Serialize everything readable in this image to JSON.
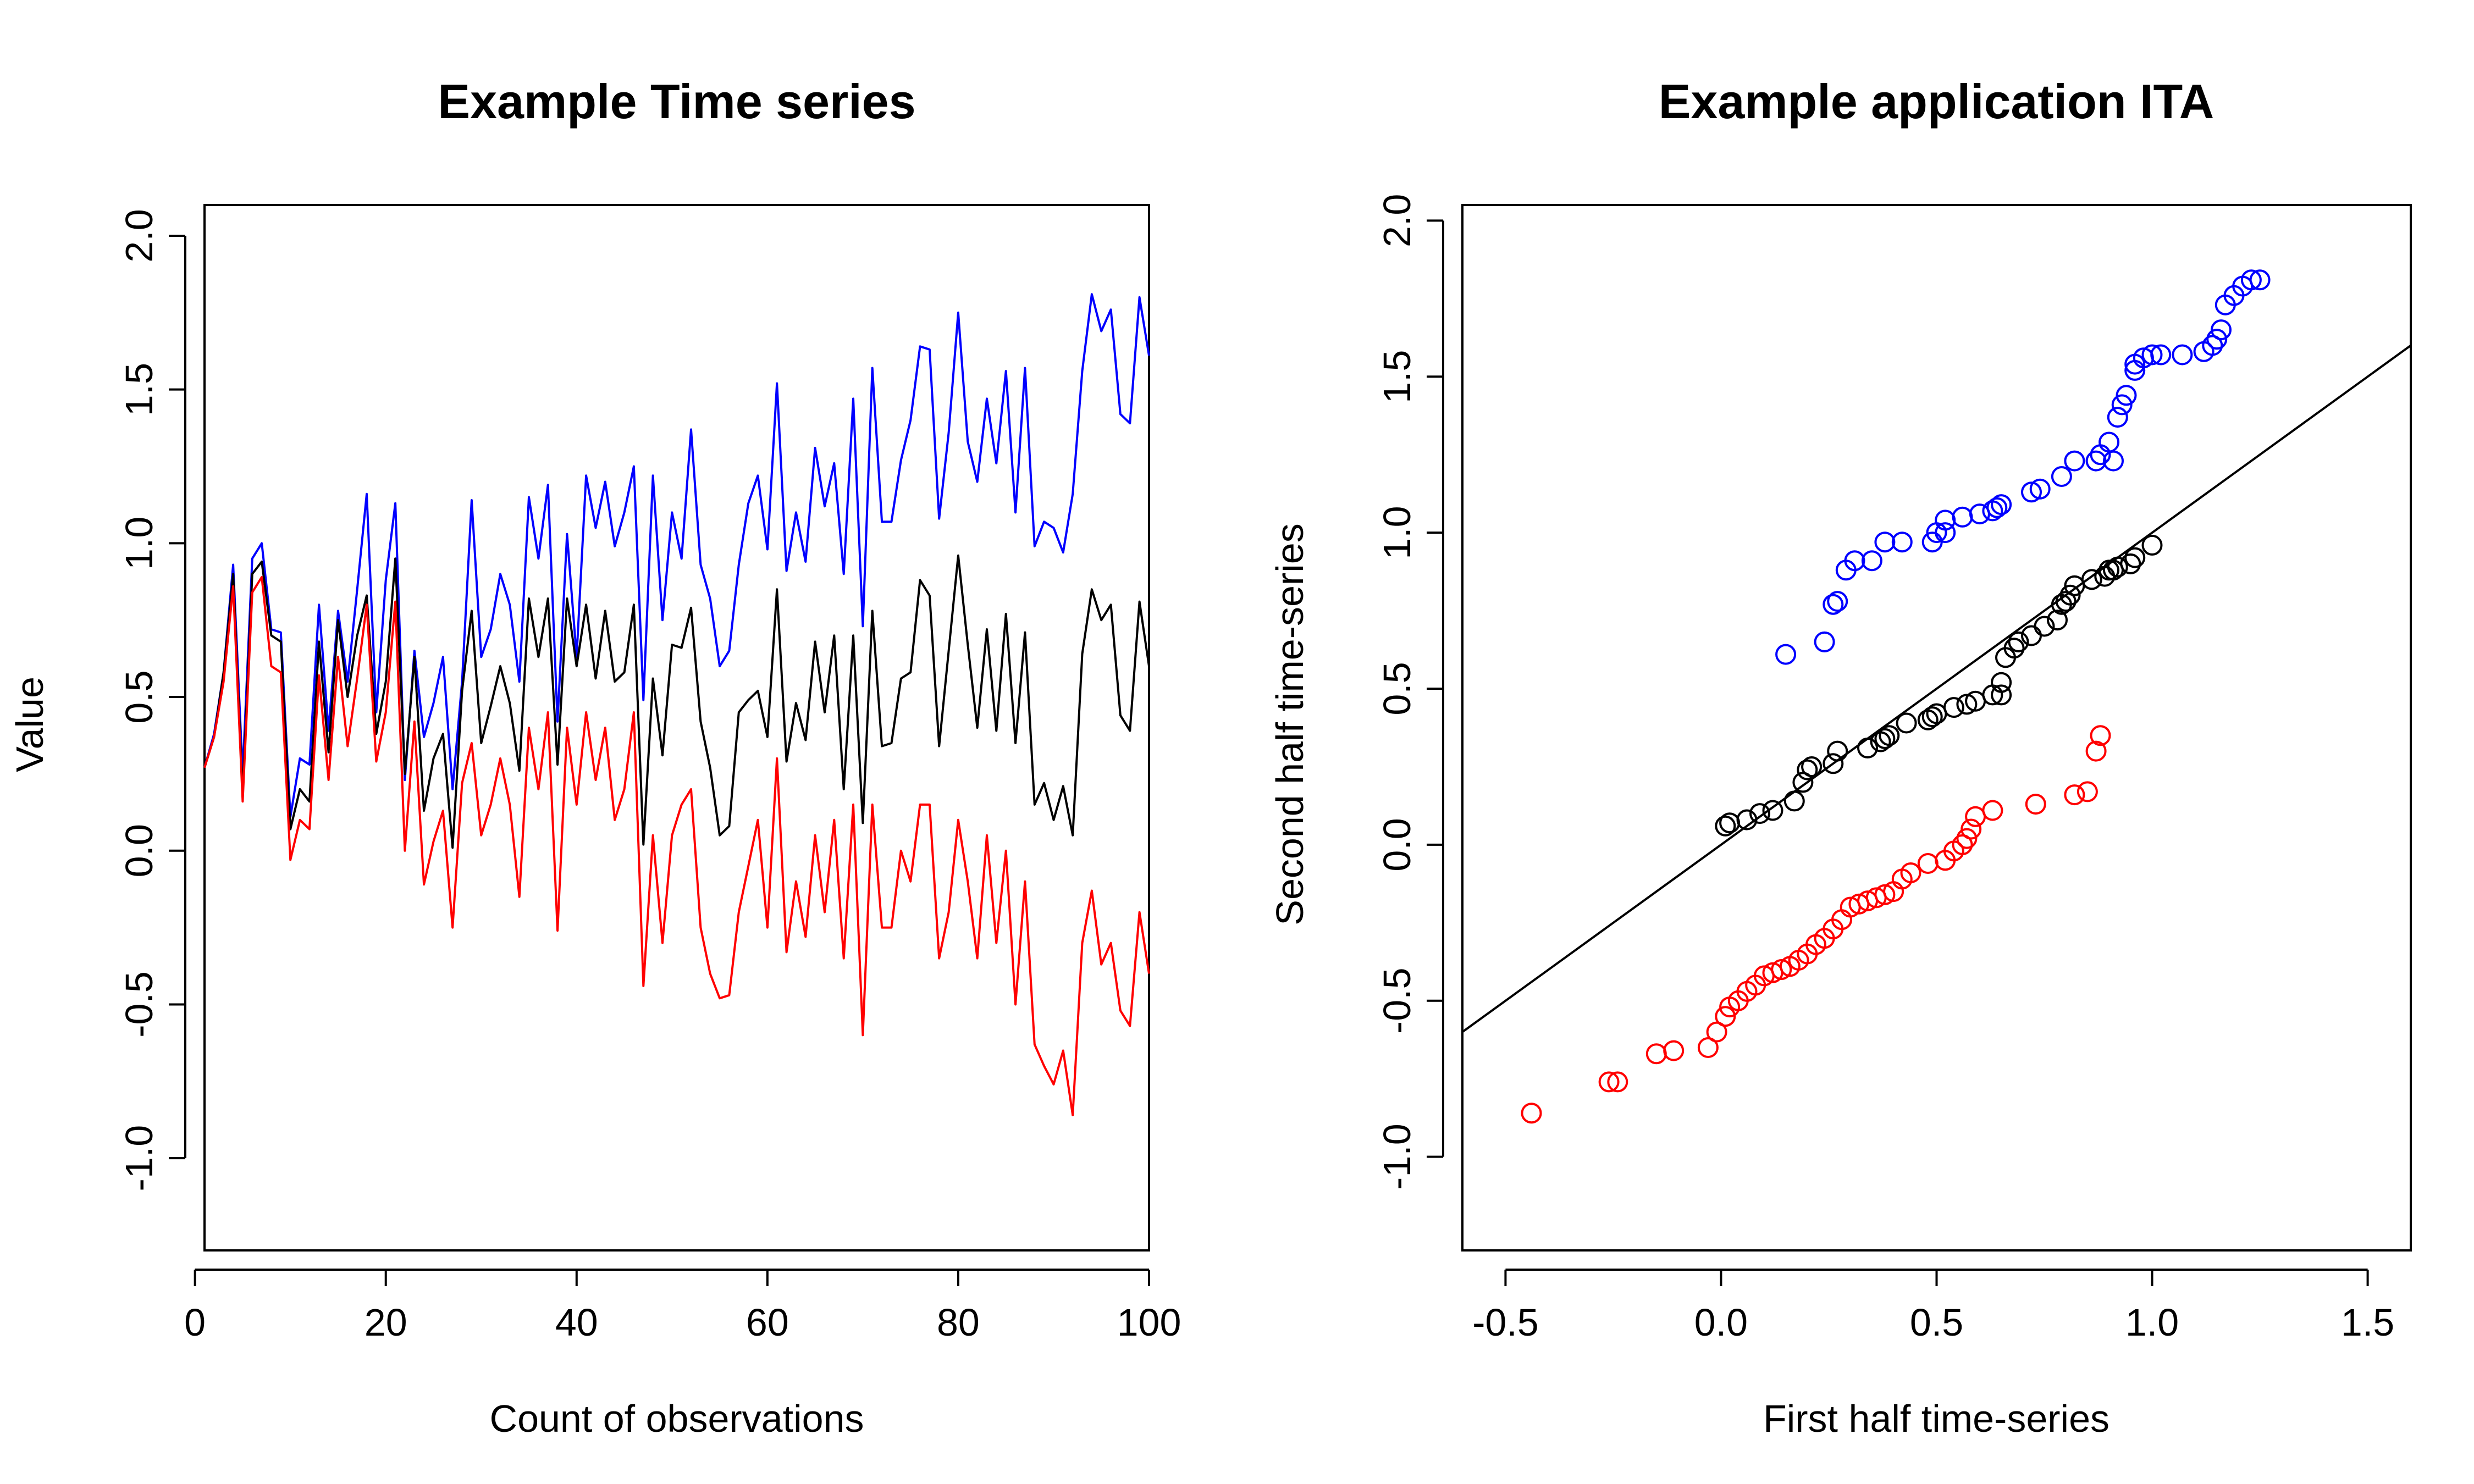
{
  "chart_data": [
    {
      "type": "line",
      "title": "Example Time series",
      "xlabel": "Count of observations",
      "ylabel": "Value",
      "xlim": [
        1,
        100
      ],
      "ylim": [
        -1.3,
        2.1
      ],
      "x_ticks": [
        "0",
        "20",
        "40",
        "60",
        "80",
        "100"
      ],
      "y_ticks": [
        "-1.0",
        "-0.5",
        "0.0",
        "0.5",
        "1.0",
        "1.5",
        "2.0"
      ],
      "grid": false,
      "x": [
        1,
        2,
        3,
        4,
        5,
        6,
        7,
        8,
        9,
        10,
        11,
        12,
        13,
        14,
        15,
        16,
        17,
        18,
        19,
        20,
        21,
        22,
        23,
        24,
        25,
        26,
        27,
        28,
        29,
        30,
        31,
        32,
        33,
        34,
        35,
        36,
        37,
        38,
        39,
        40,
        41,
        42,
        43,
        44,
        45,
        46,
        47,
        48,
        49,
        50,
        51,
        52,
        53,
        54,
        55,
        56,
        57,
        58,
        59,
        60,
        61,
        62,
        63,
        64,
        65,
        66,
        67,
        68,
        69,
        70,
        71,
        72,
        73,
        74,
        75,
        76,
        77,
        78,
        79,
        80,
        81,
        82,
        83,
        84,
        85,
        86,
        87,
        88,
        89,
        90,
        91,
        92,
        93,
        94,
        95,
        96,
        97,
        98,
        99,
        100
      ],
      "series": [
        {
          "color": "#0000ff",
          "values": [
            0.27,
            0.38,
            0.58,
            0.93,
            0.25,
            0.95,
            1.0,
            0.72,
            0.71,
            0.11,
            0.3,
            0.28,
            0.8,
            0.39,
            0.78,
            0.55,
            0.85,
            1.16,
            0.45,
            0.88,
            1.13,
            0.23,
            0.65,
            0.37,
            0.48,
            0.63,
            0.2,
            0.55,
            1.14,
            0.63,
            0.72,
            0.9,
            0.8,
            0.55,
            1.15,
            0.95,
            1.19,
            0.42,
            1.03,
            0.63,
            1.22,
            1.05,
            1.2,
            0.99,
            1.1,
            1.25,
            0.49,
            1.22,
            0.75,
            1.1,
            0.95,
            1.37,
            0.93,
            0.82,
            0.6,
            0.65,
            0.93,
            1.13,
            1.22,
            0.98,
            1.52,
            0.91,
            1.1,
            0.94,
            1.31,
            1.12,
            1.26,
            0.9,
            1.47,
            0.73,
            1.57,
            1.07,
            1.07,
            1.27,
            1.4,
            1.64,
            1.63,
            1.08,
            1.36,
            1.75,
            1.33,
            1.2,
            1.47,
            1.26,
            1.56,
            1.1,
            1.57,
            0.99,
            1.07,
            1.05,
            0.97,
            1.16,
            1.56,
            1.81,
            1.69,
            1.76,
            1.42,
            1.39,
            1.8,
            1.61
          ]
        },
        {
          "color": "#000000",
          "values": [
            0.27,
            0.37,
            0.58,
            0.9,
            0.18,
            0.9,
            0.94,
            0.7,
            0.68,
            0.07,
            0.2,
            0.16,
            0.68,
            0.32,
            0.75,
            0.5,
            0.7,
            0.83,
            0.38,
            0.55,
            0.95,
            0.25,
            0.63,
            0.13,
            0.3,
            0.38,
            0.01,
            0.52,
            0.78,
            0.35,
            0.47,
            0.6,
            0.48,
            0.26,
            0.82,
            0.63,
            0.82,
            0.28,
            0.82,
            0.6,
            0.8,
            0.56,
            0.78,
            0.55,
            0.58,
            0.8,
            0.02,
            0.56,
            0.31,
            0.67,
            0.66,
            0.79,
            0.42,
            0.27,
            0.05,
            0.08,
            0.45,
            0.49,
            0.52,
            0.37,
            0.85,
            0.29,
            0.48,
            0.36,
            0.68,
            0.45,
            0.7,
            0.2,
            0.7,
            0.09,
            0.78,
            0.34,
            0.35,
            0.56,
            0.58,
            0.88,
            0.83,
            0.34,
            0.65,
            0.96,
            0.67,
            0.4,
            0.72,
            0.39,
            0.77,
            0.35,
            0.71,
            0.15,
            0.22,
            0.1,
            0.21,
            0.05,
            0.64,
            0.85,
            0.75,
            0.8,
            0.44,
            0.39,
            0.81,
            0.6
          ]
        },
        {
          "color": "#ff0000",
          "values": [
            0.27,
            0.37,
            0.55,
            0.86,
            0.16,
            0.84,
            0.89,
            0.6,
            0.58,
            -0.03,
            0.1,
            0.07,
            0.57,
            0.23,
            0.63,
            0.34,
            0.56,
            0.8,
            0.29,
            0.45,
            0.81,
            0.0,
            0.42,
            -0.11,
            0.03,
            0.13,
            -0.25,
            0.22,
            0.35,
            0.05,
            0.15,
            0.3,
            0.15,
            -0.15,
            0.4,
            0.2,
            0.45,
            -0.26,
            0.4,
            0.15,
            0.45,
            0.23,
            0.4,
            0.1,
            0.2,
            0.45,
            -0.44,
            0.05,
            -0.3,
            0.05,
            0.15,
            0.2,
            -0.25,
            -0.4,
            -0.48,
            -0.47,
            -0.2,
            -0.05,
            0.1,
            -0.25,
            0.3,
            -0.33,
            -0.1,
            -0.28,
            0.05,
            -0.2,
            0.1,
            -0.35,
            0.15,
            -0.6,
            0.15,
            -0.25,
            -0.25,
            0.0,
            -0.1,
            0.15,
            0.15,
            -0.35,
            -0.2,
            0.1,
            -0.1,
            -0.35,
            0.05,
            -0.3,
            0.0,
            -0.5,
            -0.1,
            -0.63,
            -0.7,
            -0.76,
            -0.65,
            -0.86,
            -0.3,
            -0.13,
            -0.37,
            -0.3,
            -0.52,
            -0.57,
            -0.2,
            -0.4
          ]
        }
      ]
    },
    {
      "type": "scatter",
      "title": "Example application ITA",
      "xlabel": "First half time-series",
      "ylabel": "Second half time-series",
      "xlim": [
        -0.6,
        1.6
      ],
      "ylim": [
        -1.3,
        2.05
      ],
      "x_ticks": [
        "-0.5",
        "0.0",
        "0.5",
        "1.0",
        "1.5"
      ],
      "y_ticks": [
        "-1.0",
        "-0.5",
        "0.0",
        "0.5",
        "1.0",
        "1.5",
        "2.0"
      ],
      "grid": false,
      "reference_line": {
        "slope": 1,
        "intercept": 0
      },
      "series": [
        {
          "color": "#0000ff",
          "x": [
            0.15,
            0.24,
            0.26,
            0.27,
            0.29,
            0.31,
            0.35,
            0.38,
            0.42,
            0.49,
            0.5,
            0.52,
            0.52,
            0.56,
            0.6,
            0.63,
            0.64,
            0.65,
            0.72,
            0.74,
            0.79,
            0.82,
            0.87,
            0.88,
            0.9,
            0.91,
            0.92,
            0.93,
            0.94,
            0.96,
            0.96,
            0.98,
            1.0,
            1.02,
            1.07,
            1.12,
            1.14,
            1.15,
            1.16,
            1.17,
            1.19,
            1.21,
            1.23,
            1.25
          ],
          "y": [
            0.61,
            0.65,
            0.77,
            0.78,
            0.88,
            0.91,
            0.91,
            0.97,
            0.97,
            0.97,
            1.0,
            1.0,
            1.04,
            1.05,
            1.06,
            1.07,
            1.08,
            1.09,
            1.13,
            1.14,
            1.18,
            1.23,
            1.23,
            1.25,
            1.29,
            1.23,
            1.37,
            1.41,
            1.44,
            1.52,
            1.54,
            1.56,
            1.57,
            1.57,
            1.57,
            1.58,
            1.6,
            1.62,
            1.65,
            1.73,
            1.76,
            1.79,
            1.81,
            1.81
          ]
        },
        {
          "color": "#000000",
          "x": [
            0.01,
            0.02,
            0.06,
            0.09,
            0.12,
            0.17,
            0.19,
            0.2,
            0.21,
            0.26,
            0.27,
            0.34,
            0.37,
            0.38,
            0.39,
            0.43,
            0.48,
            0.49,
            0.5,
            0.54,
            0.57,
            0.59,
            0.63,
            0.65,
            0.65,
            0.66,
            0.68,
            0.69,
            0.72,
            0.75,
            0.78,
            0.79,
            0.8,
            0.81,
            0.82,
            0.86,
            0.89,
            0.9,
            0.91,
            0.92,
            0.95,
            0.96,
            1.0
          ],
          "y": [
            0.06,
            0.07,
            0.08,
            0.1,
            0.11,
            0.14,
            0.2,
            0.24,
            0.25,
            0.26,
            0.3,
            0.31,
            0.33,
            0.34,
            0.35,
            0.39,
            0.4,
            0.41,
            0.42,
            0.44,
            0.45,
            0.46,
            0.48,
            0.48,
            0.52,
            0.6,
            0.63,
            0.65,
            0.67,
            0.7,
            0.72,
            0.77,
            0.78,
            0.8,
            0.83,
            0.85,
            0.86,
            0.88,
            0.88,
            0.89,
            0.9,
            0.92,
            0.96
          ]
        },
        {
          "color": "#ff0000",
          "x": [
            -0.44,
            -0.26,
            -0.24,
            -0.15,
            -0.11,
            -0.03,
            -0.01,
            0.01,
            0.02,
            0.04,
            0.06,
            0.08,
            0.1,
            0.12,
            0.14,
            0.16,
            0.18,
            0.2,
            0.22,
            0.24,
            0.26,
            0.28,
            0.3,
            0.32,
            0.34,
            0.36,
            0.38,
            0.4,
            0.42,
            0.44,
            0.48,
            0.52,
            0.54,
            0.56,
            0.57,
            0.58,
            0.59,
            0.63,
            0.73,
            0.82,
            0.85,
            0.87,
            0.88
          ],
          "y": [
            -0.86,
            -0.76,
            -0.76,
            -0.67,
            -0.66,
            -0.65,
            -0.6,
            -0.55,
            -0.52,
            -0.5,
            -0.47,
            -0.45,
            -0.42,
            -0.41,
            -0.4,
            -0.39,
            -0.37,
            -0.35,
            -0.32,
            -0.3,
            -0.27,
            -0.24,
            -0.2,
            -0.19,
            -0.18,
            -0.17,
            -0.16,
            -0.15,
            -0.11,
            -0.09,
            -0.06,
            -0.05,
            -0.02,
            0.0,
            0.02,
            0.05,
            0.09,
            0.11,
            0.13,
            0.16,
            0.17,
            0.3,
            0.35
          ]
        }
      ]
    }
  ]
}
